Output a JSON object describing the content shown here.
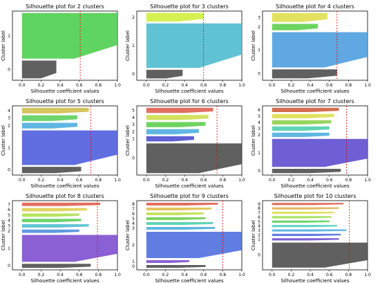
{
  "chart_data": [
    {
      "type": "bar",
      "title": "Silhouette plot for 2 clusters",
      "xlabel": "Silhouette coefficient values",
      "ylabel": "Cluster label",
      "xlim": [
        -0.1,
        1.0
      ],
      "xticks": [
        "0.0",
        "0.2",
        "0.4",
        "0.6",
        "0.8",
        "1.0"
      ],
      "average_silhouette": 0.61,
      "clusters": [
        {
          "label": "0",
          "size": 0.28,
          "max": 0.36,
          "color": "#444444"
        },
        {
          "label": "1",
          "size": 0.72,
          "max": 1.0,
          "color": "#44cc44"
        }
      ]
    },
    {
      "type": "bar",
      "title": "Silhouette plot for 3 clusters",
      "xlabel": "Silhouette coefficient values",
      "ylabel": "Cluster label",
      "xlim": [
        -0.1,
        1.0
      ],
      "xticks": [
        "0.0",
        "0.2",
        "0.4",
        "0.6",
        "0.8",
        "1.0"
      ],
      "average_silhouette": 0.6,
      "clusters": [
        {
          "label": "0",
          "size": 0.14,
          "max": 0.38,
          "color": "#444444"
        },
        {
          "label": "1",
          "size": 0.72,
          "max": 1.0,
          "color": "#44b8cc"
        },
        {
          "label": "2",
          "size": 0.14,
          "max": 0.6,
          "color": "#ccee33"
        }
      ]
    },
    {
      "type": "bar",
      "title": "Silhouette plot for 4 clusters",
      "xlabel": "Silhouette coefficient values",
      "ylabel": "Cluster label",
      "xlim": [
        -0.1,
        1.0
      ],
      "xticks": [
        "0.0",
        "0.2",
        "0.4",
        "0.6",
        "0.8",
        "1.0"
      ],
      "average_silhouette": 0.68,
      "clusters": [
        {
          "label": "0",
          "size": 0.14,
          "max": 0.68,
          "color": "#444444"
        },
        {
          "label": "1",
          "size": 0.55,
          "max": 1.0,
          "color": "#4499dd"
        },
        {
          "label": "2",
          "size": 0.1,
          "max": 0.48,
          "color": "#55cc44"
        },
        {
          "label": "3",
          "size": 0.14,
          "max": 0.58,
          "color": "#dddd44"
        }
      ]
    },
    {
      "type": "bar",
      "title": "Silhouette plot for 5 clusters",
      "xlabel": "Silhouette coefficient values",
      "ylabel": "Cluster label",
      "xlim": [
        -0.1,
        1.0
      ],
      "xticks": [
        "0.0",
        "0.2",
        "0.4",
        "0.6",
        "0.8",
        "1.0"
      ],
      "average_silhouette": 0.72,
      "clusters": [
        {
          "label": "0",
          "size": 0.1,
          "max": 0.62,
          "color": "#444444"
        },
        {
          "label": "1",
          "size": 0.55,
          "max": 1.0,
          "color": "#4455dd"
        },
        {
          "label": "2",
          "size": 0.09,
          "max": 0.58,
          "color": "#44aadd"
        },
        {
          "label": "3",
          "size": 0.09,
          "max": 0.58,
          "color": "#55cc55"
        },
        {
          "label": "4",
          "size": 0.09,
          "max": 0.7,
          "color": "#ccbb44"
        }
      ]
    },
    {
      "type": "bar",
      "title": "Silhouette plot for 6 clusters",
      "xlabel": "Silhouette coefficient values",
      "ylabel": "Cluster label",
      "xlim": [
        -0.1,
        1.0
      ],
      "xticks": [
        "0.0",
        "0.2",
        "0.4",
        "0.6",
        "0.8",
        "1.0"
      ],
      "average_silhouette": 0.74,
      "clusters": [
        {
          "label": "0",
          "size": 0.46,
          "max": 1.0,
          "color": "#444444"
        },
        {
          "label": "1",
          "size": 0.08,
          "max": 0.5,
          "color": "#4444cc"
        },
        {
          "label": "2",
          "size": 0.08,
          "max": 0.55,
          "color": "#44aadd"
        },
        {
          "label": "3",
          "size": 0.08,
          "max": 0.62,
          "color": "#55cc44"
        },
        {
          "label": "4",
          "size": 0.08,
          "max": 0.65,
          "color": "#ccdd44"
        },
        {
          "label": "5",
          "size": 0.08,
          "max": 0.7,
          "color": "#dd5544"
        }
      ]
    },
    {
      "type": "bar",
      "title": "Silhouette plot for 7 clusters",
      "xlabel": "Silhouette coefficient values",
      "ylabel": "Cluster label",
      "xlim": [
        -0.1,
        1.0
      ],
      "xticks": [
        "0.0",
        "0.2",
        "0.4",
        "0.6",
        "0.8",
        "1.0"
      ],
      "average_silhouette": 0.78,
      "clusters": [
        {
          "label": "0",
          "size": 0.07,
          "max": 0.72,
          "color": "#444444"
        },
        {
          "label": "1",
          "size": 0.45,
          "max": 1.0,
          "color": "#5544cc"
        },
        {
          "label": "2",
          "size": 0.07,
          "max": 0.6,
          "color": "#44aadd"
        },
        {
          "label": "3",
          "size": 0.07,
          "max": 0.6,
          "color": "#44ccaa"
        },
        {
          "label": "4",
          "size": 0.07,
          "max": 0.62,
          "color": "#88cc44"
        },
        {
          "label": "5",
          "size": 0.07,
          "max": 0.65,
          "color": "#dddd44"
        },
        {
          "label": "6",
          "size": 0.07,
          "max": 0.7,
          "color": "#cc5533"
        }
      ]
    },
    {
      "type": "bar",
      "title": "Silhouette plot for 8 clusters",
      "xlabel": "Silhouette coefficient values",
      "ylabel": "Cluster label",
      "xlim": [
        -0.1,
        1.0
      ],
      "xticks": [
        "0.0",
        "0.2",
        "0.4",
        "0.6",
        "0.8",
        "1.0"
      ],
      "average_silhouette": 0.79,
      "clusters": [
        {
          "label": "0",
          "size": 0.06,
          "max": 0.72,
          "color": "#444444"
        },
        {
          "label": "1",
          "size": 0.4,
          "max": 1.0,
          "color": "#7744cc"
        },
        {
          "label": "2",
          "size": 0.05,
          "max": 0.6,
          "color": "#4488dd"
        },
        {
          "label": "3",
          "size": 0.05,
          "max": 0.7,
          "color": "#44bbcc"
        },
        {
          "label": "4",
          "size": 0.05,
          "max": 0.62,
          "color": "#55cc55"
        },
        {
          "label": "5",
          "size": 0.05,
          "max": 0.6,
          "color": "#aadd44"
        },
        {
          "label": "6",
          "size": 0.05,
          "max": 0.68,
          "color": "#ddcc44"
        },
        {
          "label": "7",
          "size": 0.05,
          "max": 0.82,
          "color": "#dd5544"
        }
      ]
    },
    {
      "type": "bar",
      "title": "Silhouette plot for 9 clusters",
      "xlabel": "Silhouette coefficient values",
      "ylabel": "Cluster label",
      "xlim": [
        -0.1,
        1.0
      ],
      "xticks": [
        "0.0",
        "0.2",
        "0.4",
        "0.6",
        "0.8",
        "1.0"
      ],
      "average_silhouette": 0.8,
      "clusters": [
        {
          "label": "0",
          "size": 0.04,
          "max": 0.62,
          "color": "#444444"
        },
        {
          "label": "1",
          "size": 0.04,
          "max": 0.45,
          "color": "#7744cc"
        },
        {
          "label": "2",
          "size": 0.38,
          "max": 1.0,
          "color": "#4466dd"
        },
        {
          "label": "3",
          "size": 0.04,
          "max": 0.72,
          "color": "#44aadd"
        },
        {
          "label": "4",
          "size": 0.04,
          "max": 0.7,
          "color": "#44ccaa"
        },
        {
          "label": "5",
          "size": 0.04,
          "max": 0.62,
          "color": "#66cc44"
        },
        {
          "label": "6",
          "size": 0.04,
          "max": 0.6,
          "color": "#bbdd44"
        },
        {
          "label": "7",
          "size": 0.04,
          "max": 0.68,
          "color": "#ddbb44"
        },
        {
          "label": "8",
          "size": 0.04,
          "max": 0.75,
          "color": "#dd5544"
        }
      ]
    },
    {
      "type": "bar",
      "title": "Silhouette plot for 10 clusters",
      "xlabel": "Silhouette coefficient values",
      "ylabel": "Cluster label",
      "xlim": [
        -0.1,
        1.0
      ],
      "xticks": [
        "0.0",
        "0.2",
        "0.4",
        "0.6",
        "0.8",
        "1.0"
      ],
      "average_silhouette": 0.81,
      "clusters": [
        {
          "label": "0",
          "size": 0.34,
          "max": 1.0,
          "color": "#444444"
        },
        {
          "label": "1",
          "size": 0.03,
          "max": 0.7,
          "color": "#6644cc"
        },
        {
          "label": "2",
          "size": 0.03,
          "max": 0.72,
          "color": "#4466dd"
        },
        {
          "label": "3",
          "size": 0.03,
          "max": 0.78,
          "color": "#44aadd"
        },
        {
          "label": "4",
          "size": 0.03,
          "max": 0.68,
          "color": "#44ccbb"
        },
        {
          "label": "5",
          "size": 0.03,
          "max": 0.6,
          "color": "#55cc55"
        },
        {
          "label": "6",
          "size": 0.03,
          "max": 0.62,
          "color": "#99dd44"
        },
        {
          "label": "7",
          "size": 0.03,
          "max": 0.65,
          "color": "#dddd44"
        },
        {
          "label": "8",
          "size": 0.03,
          "max": 0.7,
          "color": "#ddaa44"
        },
        {
          "label": "9",
          "size": 0.03,
          "max": 0.75,
          "color": "#dd5544"
        }
      ]
    }
  ]
}
